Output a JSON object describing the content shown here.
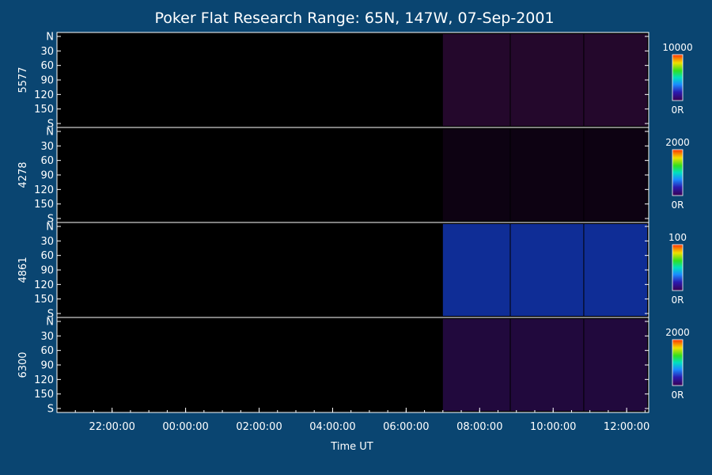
{
  "chart_data": {
    "type": "heatmap",
    "title": "Poker Flat Research Range: 65N, 147W, 07-Sep-2001",
    "xlabel": "Time UT",
    "x_ticks": [
      "22:00:00",
      "00:00:00",
      "02:00:00",
      "04:00:00",
      "06:00:00",
      "08:00:00",
      "10:00:00",
      "12:00:00"
    ],
    "x_range_hours": [
      20.5,
      12.6
    ],
    "data_start": "07:00:00",
    "y_ticks": [
      "N",
      "30",
      "60",
      "90",
      "120",
      "150",
      "S"
    ],
    "panels": [
      {
        "label": "5577",
        "scale_max": "10000",
        "scale_min": "0R",
        "intensity": 0.05
      },
      {
        "label": "4278",
        "scale_max": "2000",
        "scale_min": "0R",
        "intensity": 0.02
      },
      {
        "label": "4861",
        "scale_max": "100",
        "scale_min": "0R",
        "intensity": 0.45
      },
      {
        "label": "6300",
        "scale_max": "2000",
        "scale_min": "0R",
        "intensity": 0.12
      }
    ]
  },
  "colors": {
    "background": "#0a4571",
    "plot_background": "#000000",
    "foreground": "#ffffff"
  }
}
